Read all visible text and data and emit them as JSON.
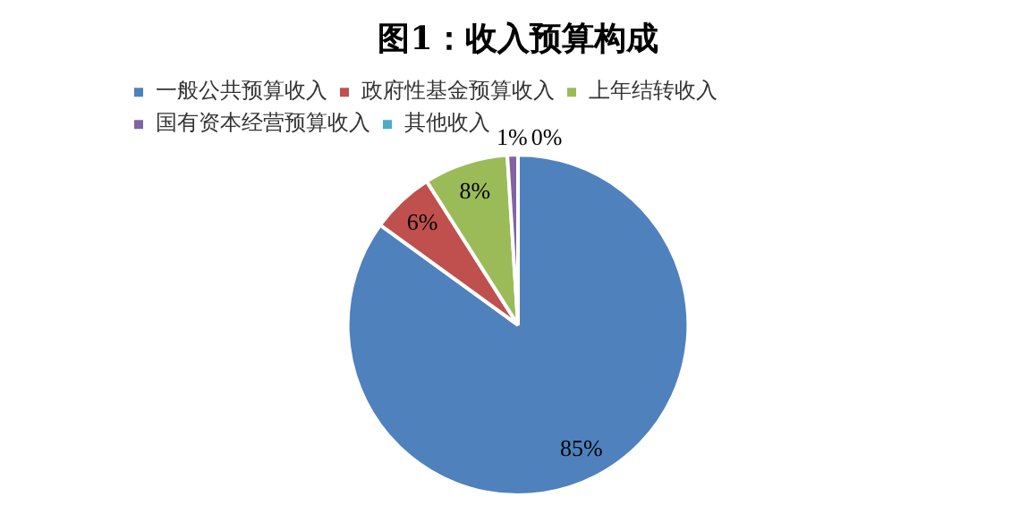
{
  "chart_data": {
    "type": "pie",
    "title": "图1：收入预算构成",
    "categories": [
      "一般公共预算收入",
      "政府性基金预算收入",
      "上年结转收入",
      "国有资本经营预算收入",
      "其他收入"
    ],
    "values": [
      85,
      6,
      8,
      1,
      0
    ],
    "colors": [
      "#4f81bd",
      "#c0504d",
      "#9bbb59",
      "#8064a2",
      "#4bacc6"
    ],
    "value_labels": [
      "85%",
      "6%",
      "8%",
      "1%",
      "0%"
    ],
    "legend": "top"
  }
}
